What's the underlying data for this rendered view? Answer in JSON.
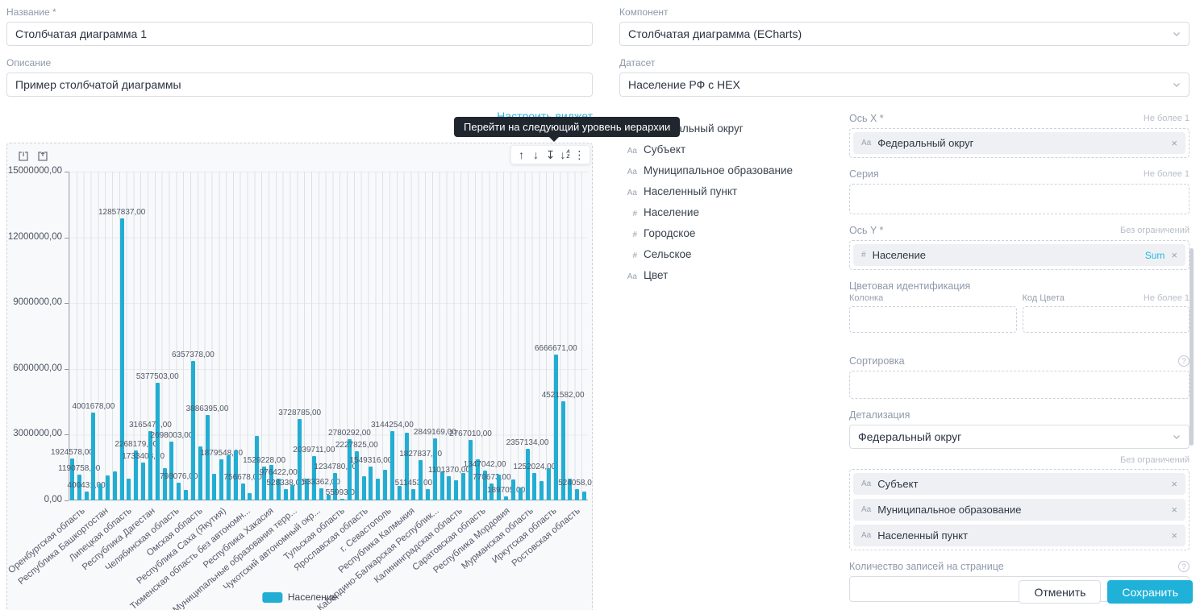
{
  "accent": "#1fb1d7",
  "form": {
    "name_label": "Название *",
    "name_value": "Столбчатая диаграмма 1",
    "description_label": "Описание",
    "description_value": "Пример столбчатой диаграммы",
    "configure_widget_link": "Настроить виджет"
  },
  "tooltip": {
    "text": "Перейти на следующий уровень иерархии"
  },
  "chart_toolbar": {
    "icons": [
      "arrow-up",
      "arrow-down",
      "arrow-down-from-bar",
      "sort-descending",
      "kebab-menu"
    ]
  },
  "right_panel": {
    "component_label": "Компонент",
    "component_value": "Столбчатая диаграмма (ECharts)",
    "dataset_label": "Датасет",
    "dataset_value": "Население РФ с HEX",
    "fields": [
      {
        "type": "Aa",
        "label": "Федеральный округ"
      },
      {
        "type": "Aa",
        "label": "Субъект"
      },
      {
        "type": "Aa",
        "label": "Муниципальное образование"
      },
      {
        "type": "Aa",
        "label": "Населенный пункт"
      },
      {
        "type": "#",
        "label": "Население"
      },
      {
        "type": "#",
        "label": "Городское"
      },
      {
        "type": "#",
        "label": "Сельское"
      },
      {
        "type": "Aa",
        "label": "Цвет"
      }
    ],
    "axis_x": {
      "label": "Ось X *",
      "hint": "Не более 1",
      "chips": [
        {
          "type": "Aa",
          "label": "Федеральный округ",
          "tag": null
        }
      ]
    },
    "series": {
      "label": "Серия",
      "hint": "Не более 1",
      "chips": []
    },
    "axis_y": {
      "label": "Ось Y *",
      "hint": "Без ограничений",
      "chips": [
        {
          "type": "#",
          "label": "Население",
          "tag": "Sum"
        }
      ]
    },
    "color_identification": {
      "label": "Цветовая идентификация",
      "column_label": "Колонка",
      "color_code_label": "Код Цвета",
      "hint": "Не более 1"
    },
    "sorting": {
      "label": "Сортировка"
    },
    "detail": {
      "label": "Детализация",
      "value": "Федеральный округ",
      "hint": "Без ограничений",
      "chips": [
        {
          "type": "Aa",
          "label": "Субъект",
          "tag": null
        },
        {
          "type": "Aa",
          "label": "Муниципальное образование",
          "tag": null
        },
        {
          "type": "Aa",
          "label": "Населенный пункт",
          "tag": null
        }
      ]
    },
    "page_size": {
      "label": "Количество записей на странице",
      "value": ""
    },
    "cancel_button": "Отменить",
    "save_button": "Сохранить"
  },
  "chart_data": {
    "type": "bar",
    "title": "",
    "legend": [
      "Население"
    ],
    "legend_position": "bottom",
    "bar_color": "#22aed3",
    "grid": true,
    "ylim": [
      0,
      15000000
    ],
    "ytick_labels": [
      "15000000,00",
      "12000000,00",
      "9000000,00",
      "6000000,00",
      "3000000,00",
      "0,00"
    ],
    "x_axis_labels": [
      "Оренбургская область",
      "Республика Башкортостан",
      "Липецкая область",
      "Республика Дагестан",
      "Челябинская область",
      "Омская область",
      "Республика Саха (Якутия)",
      "Тюменская область без автономн...",
      "Республика Хакасия",
      "Муниципальные образования терр...",
      "Чукотский автономный окр...",
      "Тульская область",
      "Ярославская область",
      "г. Севастополь",
      "Республика Калмыкия",
      "Кабардино-Балкарская Республик...",
      "Калининградская область",
      "Саратовская область",
      "Республика Мордовия",
      "Мурманская область",
      "Иркутская область",
      "Ростовская область"
    ],
    "bars": [
      {
        "v": 1924578,
        "label": "1924578,00"
      },
      {
        "v": 1190758,
        "label": "1190758,00"
      },
      {
        "v": 400431,
        "label": "400431,00"
      },
      {
        "v": 4001678,
        "label": "4001678,00"
      },
      {
        "v": 760000,
        "label": null
      },
      {
        "v": 1150000,
        "label": null
      },
      {
        "v": 1330000,
        "label": null
      },
      {
        "v": 12857837,
        "label": "12857837,00"
      },
      {
        "v": 980000,
        "label": null
      },
      {
        "v": 2268179,
        "label": "2268179,00"
      },
      {
        "v": 1733408,
        "label": "1733408,00"
      },
      {
        "v": 3165474,
        "label": "3165474,00"
      },
      {
        "v": 5377503,
        "label": "5377503,00"
      },
      {
        "v": 1480000,
        "label": null
      },
      {
        "v": 2698003,
        "label": "2698003,00"
      },
      {
        "v": 798076,
        "label": "798076,00"
      },
      {
        "v": 470000,
        "label": null
      },
      {
        "v": 6357378,
        "label": "6357378,00"
      },
      {
        "v": 2450000,
        "label": null
      },
      {
        "v": 3886395,
        "label": "3886395,00"
      },
      {
        "v": 1230000,
        "label": null
      },
      {
        "v": 1879548,
        "label": "1879548,00"
      },
      {
        "v": 2050000,
        "label": null
      },
      {
        "v": 2280000,
        "label": null
      },
      {
        "v": 756678,
        "label": "756678,00"
      },
      {
        "v": 340000,
        "label": null
      },
      {
        "v": 2930000,
        "label": null
      },
      {
        "v": 1529228,
        "label": "1529228,00"
      },
      {
        "v": 1620000,
        "label": null
      },
      {
        "v": 976422,
        "label": "976422,00"
      },
      {
        "v": 528338,
        "label": "528338,00"
      },
      {
        "v": 690000,
        "label": null
      },
      {
        "v": 3728785,
        "label": "3728785,00"
      },
      {
        "v": 1010000,
        "label": null
      },
      {
        "v": 2039711,
        "label": "2039711,00"
      },
      {
        "v": 533362,
        "label": "533362,00"
      },
      {
        "v": 240000,
        "label": null
      },
      {
        "v": 1234780,
        "label": "1234780,00"
      },
      {
        "v": 55993,
        "label": "55993,00"
      },
      {
        "v": 2780292,
        "label": "2780292,00"
      },
      {
        "v": 2227825,
        "label": "2227825,00"
      },
      {
        "v": 1120000,
        "label": null
      },
      {
        "v": 1549316,
        "label": "1549316,00"
      },
      {
        "v": 990000,
        "label": null
      },
      {
        "v": 1390000,
        "label": null
      },
      {
        "v": 3144254,
        "label": "3144254,00"
      },
      {
        "v": 660000,
        "label": null
      },
      {
        "v": 3090000,
        "label": null
      },
      {
        "v": 511453,
        "label": "511453,00"
      },
      {
        "v": 1827837,
        "label": "1827837,00"
      },
      {
        "v": 520000,
        "label": null
      },
      {
        "v": 2849169,
        "label": "2849169,00"
      },
      {
        "v": 1310000,
        "label": null
      },
      {
        "v": 1101370,
        "label": "1101370,00"
      },
      {
        "v": 920000,
        "label": null
      },
      {
        "v": 1260000,
        "label": null
      },
      {
        "v": 2767010,
        "label": "2767010,00"
      },
      {
        "v": 1890000,
        "label": null
      },
      {
        "v": 1347042,
        "label": "1347042,00"
      },
      {
        "v": 770673,
        "label": "770673,00"
      },
      {
        "v": 1160000,
        "label": null
      },
      {
        "v": 189705,
        "label": "189705,00"
      },
      {
        "v": 940000,
        "label": null
      },
      {
        "v": 590000,
        "label": null
      },
      {
        "v": 2357134,
        "label": "2357134,00"
      },
      {
        "v": 1252024,
        "label": "1252024,00"
      },
      {
        "v": 880000,
        "label": null
      },
      {
        "v": 1470000,
        "label": null
      },
      {
        "v": 6666671,
        "label": "6666671,00"
      },
      {
        "v": 4521582,
        "label": "4521582,00"
      },
      {
        "v": 1010000,
        "label": null
      },
      {
        "v": 524058,
        "label": "524058,00"
      },
      {
        "v": 390000,
        "label": null
      }
    ]
  }
}
